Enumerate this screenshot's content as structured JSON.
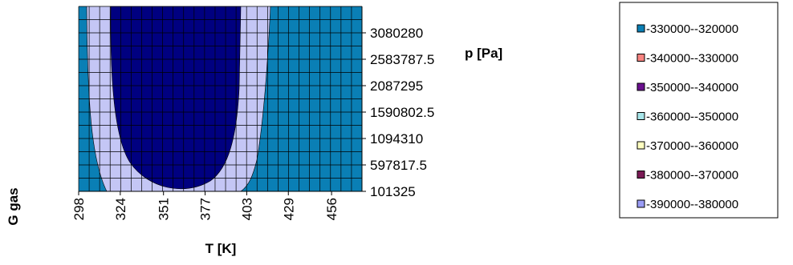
{
  "chart_data": {
    "type": "contour",
    "title": "G gas",
    "xlabel": "T [K]",
    "ylabel": "p [Pa]",
    "x_ticks": [
      "298",
      "324",
      "351",
      "377",
      "403",
      "429",
      "456"
    ],
    "y_ticks": [
      "101325",
      "597817.5",
      "1094310",
      "1590802.5",
      "2087295",
      "2583787.5",
      "3080280"
    ],
    "xlim": [
      298,
      475
    ],
    "ylim": [
      101325,
      3576772.5
    ],
    "grid": true,
    "legend_position": "right",
    "series": [
      {
        "name": "-330000--320000",
        "color": "#0a7fb5"
      },
      {
        "name": "-340000--330000",
        "color": "#f88380"
      },
      {
        "name": "-350000--340000",
        "color": "#6a0f8e"
      },
      {
        "name": "-360000--350000",
        "color": "#a8e6ea"
      },
      {
        "name": "-370000--360000",
        "color": "#ffffc0"
      },
      {
        "name": "-380000--370000",
        "color": "#7a1a55"
      },
      {
        "name": "-390000--380000",
        "color": "#9a9cf5"
      }
    ],
    "other_colors": {
      "central_region": "#000080",
      "background_region": "#c4c6f5"
    }
  }
}
